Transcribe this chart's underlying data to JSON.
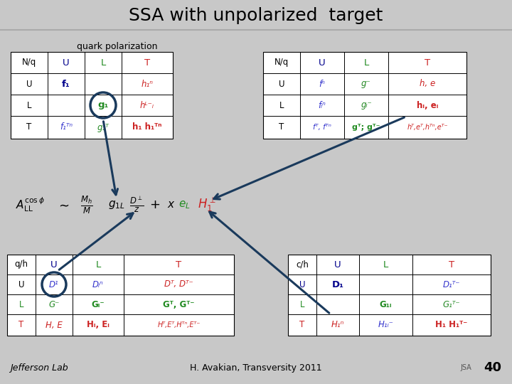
{
  "title": "SSA with unpolarized  target",
  "subtitle": "quark polarization",
  "footer_center": "H. Avakian, Transversity 2011",
  "footer_page": "40",
  "bg_top": "#ffffff",
  "bg_bottom": "#c8c8c8",
  "nav_color": "#1a3a5c",
  "black": "#000000",
  "blue": "#00008B",
  "green": "#228B22",
  "red": "#CC2222",
  "ital_blue": "#3333cc",
  "ital_green": "#228822",
  "ital_red": "#cc2222"
}
